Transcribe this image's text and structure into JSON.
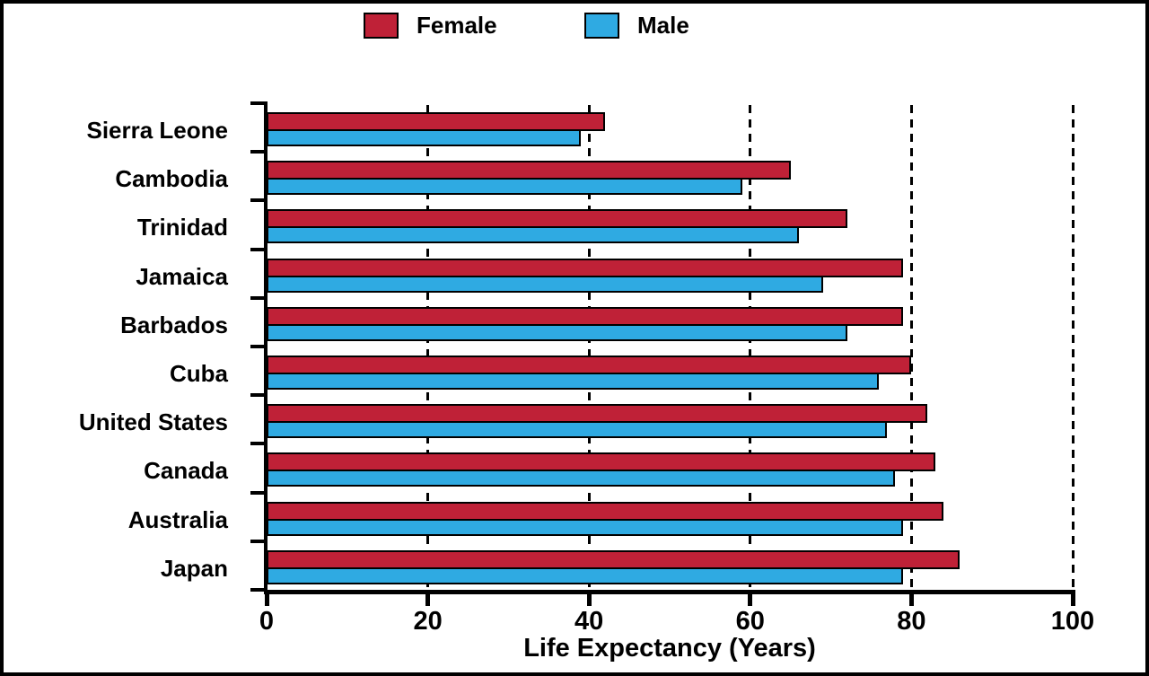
{
  "colors": {
    "female": "#bf2137",
    "male": "#2faae2",
    "bar_border": "#000000",
    "axis": "#000000",
    "background": "#ffffff"
  },
  "legend": {
    "female_label": "Female",
    "male_label": "Male",
    "position": "top"
  },
  "chart_data": {
    "type": "bar",
    "orientation": "horizontal",
    "title": "",
    "xlabel": "Life Expectancy (Years)",
    "ylabel": "",
    "xlim": [
      0,
      100
    ],
    "xticks": [
      0,
      20,
      40,
      60,
      80,
      100
    ],
    "grid": "vertical dashed lines at 20, 40, 60, 80, 100",
    "legend_position": "top center",
    "categories": [
      "Sierra Leone",
      "Cambodia",
      "Trinidad",
      "Jamaica",
      "Barbados",
      "Cuba",
      "United States",
      "Canada",
      "Australia",
      "Japan"
    ],
    "series": [
      {
        "name": "Female",
        "color": "#bf2137",
        "values": [
          42,
          65,
          72,
          79,
          79,
          80,
          82,
          83,
          84,
          86
        ]
      },
      {
        "name": "Male",
        "color": "#2faae2",
        "values": [
          39,
          59,
          66,
          69,
          72,
          76,
          77,
          78,
          79,
          79
        ]
      }
    ]
  }
}
